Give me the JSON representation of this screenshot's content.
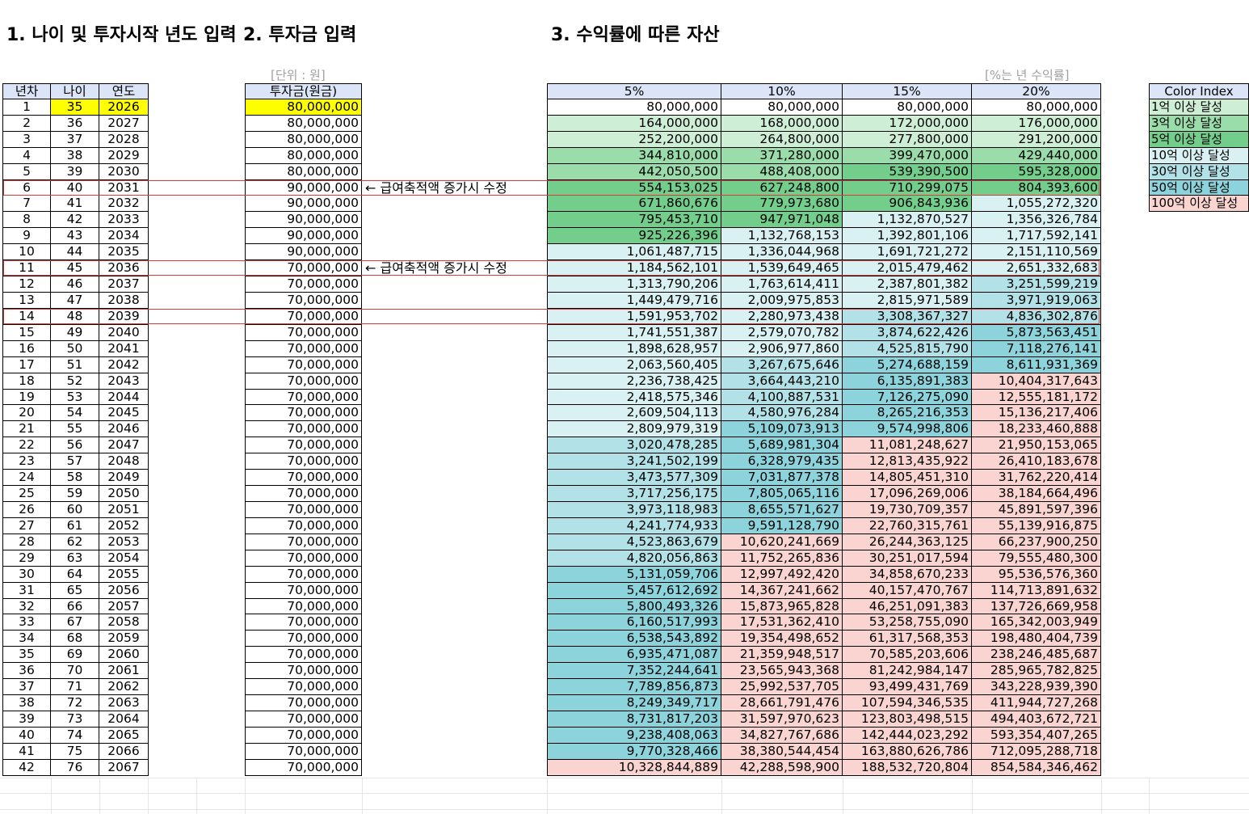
{
  "titles": {
    "section1": "1. 나이 및 투자시작 년도 입력",
    "section2": "2. 투자금 입력",
    "section3": "3. 수익률에 따른 자산"
  },
  "unit_label": "[단위 : 원]",
  "rate_unit_label": "[%는 년 수익률]",
  "age_table": {
    "headers": [
      "년차",
      "나이",
      "연도"
    ],
    "rows": [
      [
        "1",
        "35",
        "2026"
      ],
      [
        "2",
        "36",
        "2027"
      ],
      [
        "3",
        "37",
        "2028"
      ],
      [
        "4",
        "38",
        "2029"
      ],
      [
        "5",
        "39",
        "2030"
      ],
      [
        "6",
        "40",
        "2031"
      ],
      [
        "7",
        "41",
        "2032"
      ],
      [
        "8",
        "42",
        "2033"
      ],
      [
        "9",
        "43",
        "2034"
      ],
      [
        "10",
        "44",
        "2035"
      ],
      [
        "11",
        "45",
        "2036"
      ],
      [
        "12",
        "46",
        "2037"
      ],
      [
        "13",
        "47",
        "2038"
      ],
      [
        "14",
        "48",
        "2039"
      ],
      [
        "15",
        "49",
        "2040"
      ],
      [
        "16",
        "50",
        "2041"
      ],
      [
        "17",
        "51",
        "2042"
      ],
      [
        "18",
        "52",
        "2043"
      ],
      [
        "19",
        "53",
        "2044"
      ],
      [
        "20",
        "54",
        "2045"
      ],
      [
        "21",
        "55",
        "2046"
      ],
      [
        "22",
        "56",
        "2047"
      ],
      [
        "23",
        "57",
        "2048"
      ],
      [
        "24",
        "58",
        "2049"
      ],
      [
        "25",
        "59",
        "2050"
      ],
      [
        "26",
        "60",
        "2051"
      ],
      [
        "27",
        "61",
        "2052"
      ],
      [
        "28",
        "62",
        "2053"
      ],
      [
        "29",
        "63",
        "2054"
      ],
      [
        "30",
        "64",
        "2055"
      ],
      [
        "31",
        "65",
        "2056"
      ],
      [
        "32",
        "66",
        "2057"
      ],
      [
        "33",
        "67",
        "2058"
      ],
      [
        "34",
        "68",
        "2059"
      ],
      [
        "35",
        "69",
        "2060"
      ],
      [
        "36",
        "70",
        "2061"
      ],
      [
        "37",
        "71",
        "2062"
      ],
      [
        "38",
        "72",
        "2063"
      ],
      [
        "39",
        "73",
        "2064"
      ],
      [
        "40",
        "74",
        "2065"
      ],
      [
        "41",
        "75",
        "2066"
      ],
      [
        "42",
        "76",
        "2067"
      ]
    ]
  },
  "investment": {
    "header": "투자금(원금)",
    "values": [
      "80,000,000",
      "80,000,000",
      "80,000,000",
      "80,000,000",
      "80,000,000",
      "90,000,000",
      "90,000,000",
      "90,000,000",
      "90,000,000",
      "90,000,000",
      "70,000,000",
      "70,000,000",
      "70,000,000",
      "70,000,000",
      "70,000,000",
      "70,000,000",
      "70,000,000",
      "70,000,000",
      "70,000,000",
      "70,000,000",
      "70,000,000",
      "70,000,000",
      "70,000,000",
      "70,000,000",
      "70,000,000",
      "70,000,000",
      "70,000,000",
      "70,000,000",
      "70,000,000",
      "70,000,000",
      "70,000,000",
      "70,000,000",
      "70,000,000",
      "70,000,000",
      "70,000,000",
      "70,000,000",
      "70,000,000",
      "70,000,000",
      "70,000,000",
      "70,000,000",
      "70,000,000",
      "70,000,000"
    ]
  },
  "notes": [
    {
      "row": 6,
      "text": "← 급여축적액 증가시 수정"
    },
    {
      "row": 11,
      "text": "← 급여축적액 증가시 수정"
    }
  ],
  "returns": {
    "headers": [
      "5%",
      "10%",
      "15%",
      "20%"
    ],
    "rows": [
      [
        "80,000,000",
        "80,000,000",
        "80,000,000",
        "80,000,000"
      ],
      [
        "164,000,000",
        "168,000,000",
        "172,000,000",
        "176,000,000"
      ],
      [
        "252,200,000",
        "264,800,000",
        "277,800,000",
        "291,200,000"
      ],
      [
        "344,810,000",
        "371,280,000",
        "399,470,000",
        "429,440,000"
      ],
      [
        "442,050,500",
        "488,408,000",
        "539,390,500",
        "595,328,000"
      ],
      [
        "554,153,025",
        "627,248,800",
        "710,299,075",
        "804,393,600"
      ],
      [
        "671,860,676",
        "779,973,680",
        "906,843,936",
        "1,055,272,320"
      ],
      [
        "795,453,710",
        "947,971,048",
        "1,132,870,527",
        "1,356,326,784"
      ],
      [
        "925,226,396",
        "1,132,768,153",
        "1,392,801,106",
        "1,717,592,141"
      ],
      [
        "1,061,487,715",
        "1,336,044,968",
        "1,691,721,272",
        "2,151,110,569"
      ],
      [
        "1,184,562,101",
        "1,539,649,465",
        "2,015,479,462",
        "2,651,332,683"
      ],
      [
        "1,313,790,206",
        "1,763,614,411",
        "2,387,801,382",
        "3,251,599,219"
      ],
      [
        "1,449,479,716",
        "2,009,975,853",
        "2,815,971,589",
        "3,971,919,063"
      ],
      [
        "1,591,953,702",
        "2,280,973,438",
        "3,308,367,327",
        "4,836,302,876"
      ],
      [
        "1,741,551,387",
        "2,579,070,782",
        "3,874,622,426",
        "5,873,563,451"
      ],
      [
        "1,898,628,957",
        "2,906,977,860",
        "4,525,815,790",
        "7,118,276,141"
      ],
      [
        "2,063,560,405",
        "3,267,675,646",
        "5,274,688,159",
        "8,611,931,369"
      ],
      [
        "2,236,738,425",
        "3,664,443,210",
        "6,135,891,383",
        "10,404,317,643"
      ],
      [
        "2,418,575,346",
        "4,100,887,531",
        "7,126,275,090",
        "12,555,181,172"
      ],
      [
        "2,609,504,113",
        "4,580,976,284",
        "8,265,216,353",
        "15,136,217,406"
      ],
      [
        "2,809,979,319",
        "5,109,073,913",
        "9,574,998,806",
        "18,233,460,888"
      ],
      [
        "3,020,478,285",
        "5,689,981,304",
        "11,081,248,627",
        "21,950,153,065"
      ],
      [
        "3,241,502,199",
        "6,328,979,435",
        "12,813,435,922",
        "26,410,183,678"
      ],
      [
        "3,473,577,309",
        "7,031,877,378",
        "14,805,451,310",
        "31,762,220,414"
      ],
      [
        "3,717,256,175",
        "7,805,065,116",
        "17,096,269,006",
        "38,184,664,496"
      ],
      [
        "3,973,118,983",
        "8,655,571,627",
        "19,730,709,357",
        "45,891,597,396"
      ],
      [
        "4,241,774,933",
        "9,591,128,790",
        "22,760,315,761",
        "55,139,916,875"
      ],
      [
        "4,523,863,679",
        "10,620,241,669",
        "26,244,363,125",
        "66,237,900,250"
      ],
      [
        "4,820,056,863",
        "11,752,265,836",
        "30,251,017,594",
        "79,555,480,300"
      ],
      [
        "5,131,059,706",
        "12,997,492,420",
        "34,858,670,233",
        "95,536,576,360"
      ],
      [
        "5,457,612,692",
        "14,367,241,662",
        "40,157,470,767",
        "114,713,891,632"
      ],
      [
        "5,800,493,326",
        "15,873,965,828",
        "46,251,091,383",
        "137,726,669,958"
      ],
      [
        "6,160,517,993",
        "17,531,362,410",
        "53,258,755,090",
        "165,342,003,949"
      ],
      [
        "6,538,543,892",
        "19,354,498,652",
        "61,317,568,353",
        "198,480,404,739"
      ],
      [
        "6,935,471,087",
        "21,359,948,517",
        "70,585,203,606",
        "238,246,485,687"
      ],
      [
        "7,352,244,641",
        "23,565,943,368",
        "81,242,984,147",
        "285,965,782,825"
      ],
      [
        "7,789,856,873",
        "25,992,537,705",
        "93,499,431,769",
        "343,228,939,390"
      ],
      [
        "8,249,349,717",
        "28,661,791,476",
        "107,594,346,535",
        "411,944,727,268"
      ],
      [
        "8,731,817,203",
        "31,597,970,623",
        "123,803,498,515",
        "494,403,672,721"
      ],
      [
        "9,238,408,063",
        "34,827,767,686",
        "142,444,023,292",
        "593,354,407,265"
      ],
      [
        "9,770,328,466",
        "38,380,544,454",
        "163,880,626,786",
        "712,095,288,718"
      ],
      [
        "10,328,844,889",
        "42,288,598,900",
        "188,532,720,804",
        "854,584,346,462"
      ]
    ]
  },
  "highlighted_rows": [
    6,
    11,
    14
  ],
  "legend": {
    "title": "Color Index",
    "items": [
      {
        "label": "1억 이상 달성",
        "color": "#cfeed6"
      },
      {
        "label": "3억 이상 달성",
        "color": "#9adcaa"
      },
      {
        "label": "5억 이상 달성",
        "color": "#73ce8b"
      },
      {
        "label": "10억 이상 달성",
        "color": "#daf1f3"
      },
      {
        "label": "30억 이상 달성",
        "color": "#b2e2e7"
      },
      {
        "label": "50억 이상 달성",
        "color": "#8dd3dc"
      },
      {
        "label": "100억 이상 달성",
        "color": "#f9d4d0"
      }
    ]
  },
  "colors": {
    "header_fill": "#dbe5f7",
    "highlight_yellow": "#ffff00",
    "outline_red": "#d93b3b"
  }
}
